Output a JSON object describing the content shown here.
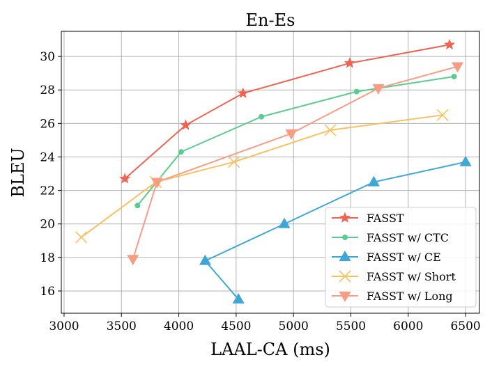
{
  "chart_data": {
    "type": "line",
    "title": "En-Es",
    "xlabel": "LAAL-CA (ms)",
    "ylabel": "BLEU",
    "xlim": [
      2976,
      6621
    ],
    "ylim": [
      14.67,
      31.5
    ],
    "xticks": [
      3000,
      3500,
      4000,
      4500,
      5000,
      5500,
      6000,
      6500
    ],
    "yticks": [
      16,
      18,
      20,
      22,
      24,
      26,
      28,
      30
    ],
    "grid": true,
    "legend_position": "bottom-right",
    "series": [
      {
        "name": "FASST",
        "color": "#ee6352",
        "marker": "star",
        "x": [
          3530,
          4060,
          4560,
          5490,
          6360
        ],
        "y": [
          22.7,
          25.9,
          27.8,
          29.6,
          30.7
        ]
      },
      {
        "name": "FASST w/ CTC",
        "color": "#59cd90",
        "marker": "circle",
        "x": [
          3640,
          4020,
          4720,
          5550,
          6400
        ],
        "y": [
          21.1,
          24.3,
          26.4,
          27.9,
          28.8
        ]
      },
      {
        "name": "FASST w/ CE",
        "color": "#3fa7d6",
        "marker": "triangle-up",
        "x": [
          4520,
          4230,
          4920,
          5700,
          6500
        ],
        "y": [
          15.5,
          17.8,
          20.0,
          22.5,
          23.7
        ]
      },
      {
        "name": "FASST w/ Short",
        "color": "#fac05e",
        "marker": "x",
        "x": [
          3150,
          3800,
          4480,
          5320,
          6300
        ],
        "y": [
          19.2,
          22.5,
          23.7,
          25.6,
          26.5
        ]
      },
      {
        "name": "FASST w/ Long",
        "color": "#f79d84",
        "marker": "triangle-down",
        "x": [
          3600,
          3810,
          4980,
          5740,
          6430
        ],
        "y": [
          17.9,
          22.5,
          25.4,
          28.1,
          29.4
        ]
      }
    ]
  }
}
